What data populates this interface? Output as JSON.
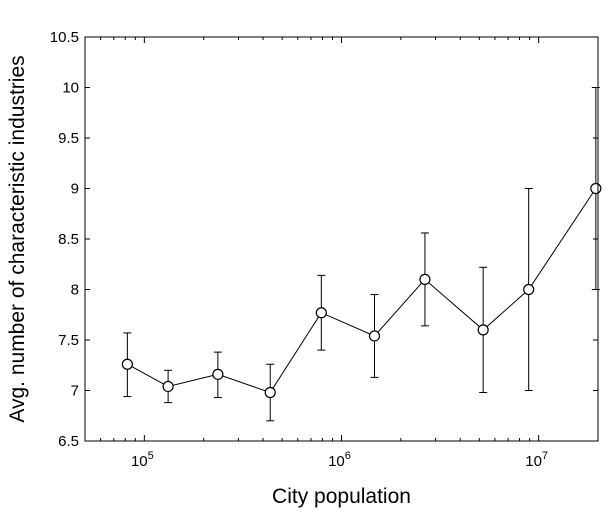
{
  "chart_data": {
    "type": "line",
    "title": "",
    "xlabel": "City population",
    "ylabel": "Avg. number of characteristic industries",
    "x_scale": "log",
    "xlim": [
      50000,
      20000000
    ],
    "ylim": [
      6.5,
      10.5
    ],
    "x_ticks": [
      {
        "value": 100000,
        "base": "10",
        "exp": "5"
      },
      {
        "value": 1000000,
        "base": "10",
        "exp": "6"
      },
      {
        "value": 10000000,
        "base": "10",
        "exp": "7"
      }
    ],
    "y_ticks": [
      {
        "value": 6.5,
        "label": "6.5"
      },
      {
        "value": 7,
        "label": "7"
      },
      {
        "value": 7.5,
        "label": "7.5"
      },
      {
        "value": 8,
        "label": "8"
      },
      {
        "value": 8.5,
        "label": "8.5"
      },
      {
        "value": 9,
        "label": "9"
      },
      {
        "value": 9.5,
        "label": "9.5"
      },
      {
        "value": 10,
        "label": "10"
      },
      {
        "value": 10.5,
        "label": "10.5"
      }
    ],
    "grid": false,
    "marker": "open-circle",
    "line_color": "#000000",
    "points": [
      {
        "x": 82000,
        "y": 7.26,
        "lo": 6.94,
        "hi": 7.57
      },
      {
        "x": 132000,
        "y": 7.04,
        "lo": 6.88,
        "hi": 7.2
      },
      {
        "x": 236000,
        "y": 7.16,
        "lo": 6.93,
        "hi": 7.38
      },
      {
        "x": 435000,
        "y": 6.98,
        "lo": 6.7,
        "hi": 7.26
      },
      {
        "x": 790000,
        "y": 7.77,
        "lo": 7.4,
        "hi": 8.14
      },
      {
        "x": 1470000,
        "y": 7.54,
        "lo": 7.13,
        "hi": 7.95
      },
      {
        "x": 2650000,
        "y": 8.1,
        "lo": 7.64,
        "hi": 8.56
      },
      {
        "x": 5230000,
        "y": 7.6,
        "lo": 6.98,
        "hi": 8.22
      },
      {
        "x": 8900000,
        "y": 8.0,
        "lo": 7.0,
        "hi": 9.0
      },
      {
        "x": 19500000,
        "y": 9.0,
        "lo": 8.0,
        "hi": 10.0
      }
    ]
  }
}
